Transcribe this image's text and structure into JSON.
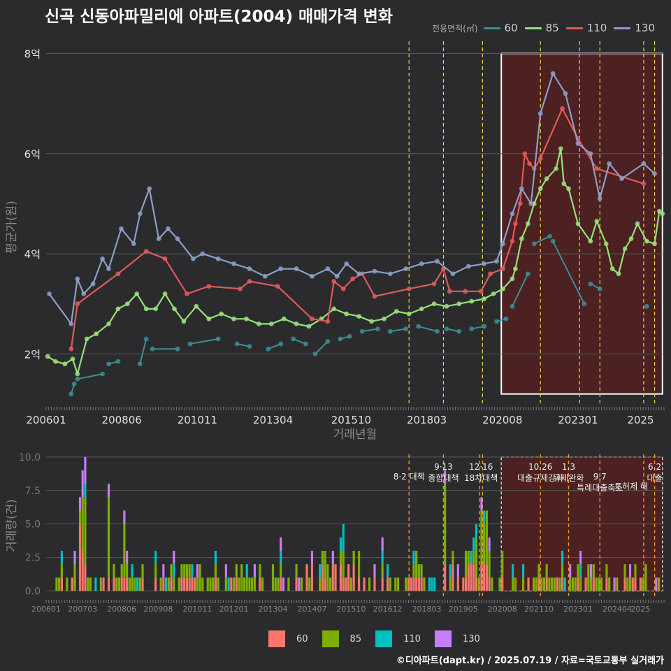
{
  "title": "신곡 신동아파밀리에 아파트(2004) 매매가격 변화",
  "footer": "©디아파트(dapt.kr) / 2025.07.19 / 자료=국토교통부 실거래가",
  "legend_title": "전용면적(㎡)",
  "colors": {
    "s60": "#3a8f96",
    "s85": "#98e07a",
    "s110": "#e05a5a",
    "s130": "#8c9fc7",
    "b60": "#f8766d",
    "b85": "#7cae00",
    "b110": "#00bfc4",
    "b130": "#c77cff",
    "policy": "#e8d84a",
    "policy_bar": "#e89a2a"
  },
  "chart_data": [
    {
      "type": "line",
      "title": "신곡 신동아파밀리에 아파트(2004) 매매가격 변화",
      "xlabel": "거래년월",
      "ylabel": "평균가(원)",
      "xlim": [
        2006.0,
        2025.75
      ],
      "ylim": [
        1.0,
        8.3
      ],
      "x_ticks": [
        "200601",
        "200806",
        "201011",
        "201304",
        "201510",
        "201803",
        "202008",
        "202301",
        "2025"
      ],
      "y_ticks": [
        {
          "value": 2,
          "label": "2억"
        },
        {
          "value": 4,
          "label": "4억"
        },
        {
          "value": 6,
          "label": "6억"
        },
        {
          "value": 8,
          "label": "8억"
        }
      ],
      "policy_lines": [
        2017.6,
        2018.7,
        2019.95,
        2021.8,
        2023.05,
        2023.7,
        2025.1,
        2025.45
      ],
      "highlight": {
        "x_start": 2020.55,
        "x_end": 2025.7,
        "y_start": 1.2,
        "y_end": 8.0
      },
      "series": [
        {
          "name": "60",
          "points": [
            [
              2006.8,
              1.2
            ],
            [
              2006.9,
              1.4
            ],
            [
              2007.0,
              1.5
            ],
            [
              2007.8,
              1.6
            ],
            [
              2008.0,
              1.8
            ],
            [
              2008.3,
              1.85
            ],
            [
              2009.0,
              1.8
            ],
            [
              2009.2,
              2.3
            ],
            [
              2009.4,
              2.1
            ],
            [
              2010.2,
              2.1
            ],
            [
              2010.6,
              2.2
            ],
            [
              2011.5,
              2.3
            ],
            [
              2012.1,
              2.2
            ],
            [
              2012.5,
              2.15
            ],
            [
              2013.1,
              2.1
            ],
            [
              2013.5,
              2.2
            ],
            [
              2013.9,
              2.3
            ],
            [
              2014.3,
              2.2
            ],
            [
              2014.6,
              2.0
            ],
            [
              2015.0,
              2.25
            ],
            [
              2015.4,
              2.3
            ],
            [
              2015.7,
              2.35
            ],
            [
              2016.1,
              2.45
            ],
            [
              2016.6,
              2.5
            ],
            [
              2017.0,
              2.45
            ],
            [
              2017.5,
              2.5
            ],
            [
              2017.9,
              2.55
            ],
            [
              2018.5,
              2.45
            ],
            [
              2018.8,
              2.5
            ],
            [
              2019.2,
              2.45
            ],
            [
              2019.6,
              2.5
            ],
            [
              2020.0,
              2.55
            ],
            [
              2020.4,
              2.65
            ],
            [
              2020.7,
              2.7
            ],
            [
              2020.9,
              2.95
            ],
            [
              2021.4,
              3.6
            ],
            [
              2021.6,
              4.2
            ],
            [
              2022.1,
              4.35
            ],
            [
              2022.2,
              4.25
            ],
            [
              2023.2,
              3.0
            ],
            [
              2023.4,
              3.4
            ],
            [
              2023.7,
              3.3
            ],
            [
              2025.2,
              2.95
            ]
          ]
        },
        {
          "name": "85",
          "points": [
            [
              2006.05,
              1.95
            ],
            [
              2006.3,
              1.85
            ],
            [
              2006.6,
              1.8
            ],
            [
              2006.85,
              1.9
            ],
            [
              2007.0,
              1.6
            ],
            [
              2007.3,
              2.3
            ],
            [
              2007.6,
              2.4
            ],
            [
              2008.0,
              2.6
            ],
            [
              2008.3,
              2.9
            ],
            [
              2008.6,
              3.0
            ],
            [
              2008.9,
              3.2
            ],
            [
              2009.2,
              2.9
            ],
            [
              2009.5,
              2.9
            ],
            [
              2009.8,
              3.2
            ],
            [
              2010.1,
              2.9
            ],
            [
              2010.4,
              2.65
            ],
            [
              2010.8,
              2.95
            ],
            [
              2011.2,
              2.7
            ],
            [
              2011.6,
              2.8
            ],
            [
              2012.0,
              2.7
            ],
            [
              2012.4,
              2.7
            ],
            [
              2012.8,
              2.6
            ],
            [
              2013.2,
              2.6
            ],
            [
              2013.6,
              2.7
            ],
            [
              2014.0,
              2.6
            ],
            [
              2014.4,
              2.55
            ],
            [
              2014.8,
              2.7
            ],
            [
              2015.2,
              2.9
            ],
            [
              2015.6,
              2.8
            ],
            [
              2016.0,
              2.75
            ],
            [
              2016.4,
              2.65
            ],
            [
              2016.8,
              2.7
            ],
            [
              2017.2,
              2.85
            ],
            [
              2017.6,
              2.8
            ],
            [
              2018.0,
              2.9
            ],
            [
              2018.4,
              3.0
            ],
            [
              2018.8,
              2.95
            ],
            [
              2019.2,
              3.0
            ],
            [
              2019.6,
              3.05
            ],
            [
              2020.0,
              3.1
            ],
            [
              2020.3,
              3.2
            ],
            [
              2020.6,
              3.3
            ],
            [
              2020.9,
              3.5
            ],
            [
              2021.0,
              3.7
            ],
            [
              2021.2,
              4.3
            ],
            [
              2021.4,
              4.6
            ],
            [
              2021.6,
              5.0
            ],
            [
              2021.8,
              5.3
            ],
            [
              2022.0,
              5.5
            ],
            [
              2022.3,
              5.7
            ],
            [
              2022.45,
              6.1
            ],
            [
              2022.55,
              5.4
            ],
            [
              2022.7,
              5.3
            ],
            [
              2023.0,
              4.6
            ],
            [
              2023.4,
              4.25
            ],
            [
              2023.6,
              4.65
            ],
            [
              2023.9,
              4.2
            ],
            [
              2024.1,
              3.7
            ],
            [
              2024.3,
              3.6
            ],
            [
              2024.5,
              4.1
            ],
            [
              2024.7,
              4.3
            ],
            [
              2024.9,
              4.6
            ],
            [
              2025.2,
              4.25
            ],
            [
              2025.45,
              4.2
            ],
            [
              2025.6,
              4.85
            ],
            [
              2025.7,
              4.8
            ]
          ]
        },
        {
          "name": "110",
          "points": [
            [
              2006.8,
              2.1
            ],
            [
              2007.0,
              3.0
            ],
            [
              2008.3,
              3.6
            ],
            [
              2009.2,
              4.05
            ],
            [
              2009.8,
              3.9
            ],
            [
              2010.5,
              3.2
            ],
            [
              2011.2,
              3.35
            ],
            [
              2012.2,
              3.3
            ],
            [
              2012.5,
              3.45
            ],
            [
              2013.4,
              3.35
            ],
            [
              2014.5,
              2.7
            ],
            [
              2015.0,
              2.65
            ],
            [
              2015.2,
              3.45
            ],
            [
              2015.5,
              3.3
            ],
            [
              2015.8,
              3.5
            ],
            [
              2016.1,
              3.6
            ],
            [
              2016.5,
              3.15
            ],
            [
              2017.6,
              3.3
            ],
            [
              2018.4,
              3.4
            ],
            [
              2018.7,
              3.7
            ],
            [
              2018.9,
              3.25
            ],
            [
              2019.4,
              3.25
            ],
            [
              2019.9,
              3.25
            ],
            [
              2020.2,
              3.6
            ],
            [
              2020.6,
              3.7
            ],
            [
              2020.9,
              4.25
            ],
            [
              2021.0,
              4.6
            ],
            [
              2021.15,
              5.0
            ],
            [
              2021.3,
              6.0
            ],
            [
              2021.45,
              5.8
            ],
            [
              2021.6,
              5.7
            ],
            [
              2021.8,
              5.9
            ],
            [
              2022.5,
              6.9
            ],
            [
              2023.0,
              6.3
            ],
            [
              2023.6,
              5.7
            ],
            [
              2025.1,
              5.4
            ]
          ]
        },
        {
          "name": "130",
          "points": [
            [
              2006.1,
              3.2
            ],
            [
              2006.8,
              2.6
            ],
            [
              2007.0,
              3.5
            ],
            [
              2007.2,
              3.2
            ],
            [
              2007.5,
              3.4
            ],
            [
              2007.8,
              3.9
            ],
            [
              2008.0,
              3.7
            ],
            [
              2008.4,
              4.5
            ],
            [
              2008.8,
              4.2
            ],
            [
              2009.0,
              4.8
            ],
            [
              2009.3,
              5.3
            ],
            [
              2009.6,
              4.3
            ],
            [
              2009.9,
              4.5
            ],
            [
              2010.2,
              4.3
            ],
            [
              2010.7,
              3.9
            ],
            [
              2011.0,
              4.0
            ],
            [
              2011.5,
              3.9
            ],
            [
              2012.0,
              3.8
            ],
            [
              2012.5,
              3.7
            ],
            [
              2013.0,
              3.55
            ],
            [
              2013.5,
              3.7
            ],
            [
              2014.0,
              3.7
            ],
            [
              2014.5,
              3.55
            ],
            [
              2015.0,
              3.7
            ],
            [
              2015.3,
              3.55
            ],
            [
              2015.6,
              3.8
            ],
            [
              2016.0,
              3.6
            ],
            [
              2016.5,
              3.65
            ],
            [
              2017.0,
              3.6
            ],
            [
              2017.5,
              3.7
            ],
            [
              2018.0,
              3.8
            ],
            [
              2018.5,
              3.85
            ],
            [
              2019.0,
              3.6
            ],
            [
              2019.5,
              3.75
            ],
            [
              2020.0,
              3.8
            ],
            [
              2020.4,
              3.85
            ],
            [
              2020.6,
              4.2
            ],
            [
              2020.9,
              4.8
            ],
            [
              2021.2,
              5.3
            ],
            [
              2021.5,
              5.0
            ],
            [
              2021.8,
              6.8
            ],
            [
              2022.2,
              7.6
            ],
            [
              2022.6,
              7.2
            ],
            [
              2023.0,
              6.2
            ],
            [
              2023.4,
              6.0
            ],
            [
              2023.7,
              5.1
            ],
            [
              2024.0,
              5.8
            ],
            [
              2024.4,
              5.5
            ],
            [
              2025.1,
              5.8
            ],
            [
              2025.45,
              5.6
            ]
          ]
        }
      ]
    },
    {
      "type": "bar",
      "ylabel": "거래량(건)",
      "ylim": [
        -0.6,
        10.2
      ],
      "y_ticks": [
        0.0,
        2.5,
        5.0,
        7.5,
        10.0
      ],
      "x_ticks": [
        "200601",
        "200703",
        "200806",
        "200908",
        "201011",
        "201201",
        "201304",
        "201407",
        "201510",
        "201612",
        "201803",
        "201905",
        "202008",
        "202110",
        "202301",
        "202404",
        "2025"
      ],
      "policy_lines": [
        2017.6,
        2018.7,
        2019.85,
        2019.95,
        2021.8,
        2022.7,
        2023.7,
        2025.1,
        2025.45
      ],
      "policy_labels": [
        {
          "x": 2017.6,
          "lines": [
            "8·2 대책"
          ],
          "row": 1
        },
        {
          "x": 2018.7,
          "lines": [
            "9·13",
            "종합대책"
          ],
          "row": 0
        },
        {
          "x": 2019.9,
          "lines": [
            "12·16",
            "18차대책"
          ],
          "row": 0
        },
        {
          "x": 2021.8,
          "lines": [
            "10.26",
            "대출규제강화"
          ],
          "row": 0
        },
        {
          "x": 2022.7,
          "lines": [
            "1.3",
            "규제완화"
          ],
          "row": 0
        },
        {
          "x": 2023.7,
          "lines": [
            "9.7",
            "특례대출축소"
          ],
          "row": 1
        },
        {
          "x": 2024.7,
          "lines": [
            "토허제 해"
          ],
          "row": 2
        },
        {
          "x": 2025.45,
          "lines": [
            "6.2",
            "대출"
          ],
          "row": 0
        }
      ],
      "highlight": {
        "x_start": 2020.55,
        "x_end": 2025.7
      },
      "categories": [
        "60",
        "85",
        "110",
        "130"
      ],
      "notable_months": [
        {
          "x": 2006.9,
          "values": [
            0,
            2,
            0,
            1
          ]
        },
        {
          "x": 2007.05,
          "values": [
            5,
            1,
            0,
            1
          ]
        },
        {
          "x": 2007.15,
          "values": [
            3,
            4,
            0,
            2
          ]
        },
        {
          "x": 2007.25,
          "values": [
            2,
            5,
            1,
            2
          ]
        },
        {
          "x": 2008.0,
          "values": [
            1,
            6,
            0,
            1
          ]
        },
        {
          "x": 2008.5,
          "values": [
            1,
            4,
            0,
            1
          ]
        },
        {
          "x": 2015.5,
          "values": [
            1,
            2,
            2,
            0
          ]
        },
        {
          "x": 2018.75,
          "values": [
            2,
            6,
            0,
            1
          ]
        },
        {
          "x": 2019.9,
          "values": [
            2,
            4,
            0,
            1
          ]
        },
        {
          "x": 2020.0,
          "values": [
            2,
            3,
            1,
            0
          ]
        },
        {
          "x": 2020.1,
          "values": [
            2,
            4,
            0,
            0
          ]
        }
      ]
    }
  ]
}
